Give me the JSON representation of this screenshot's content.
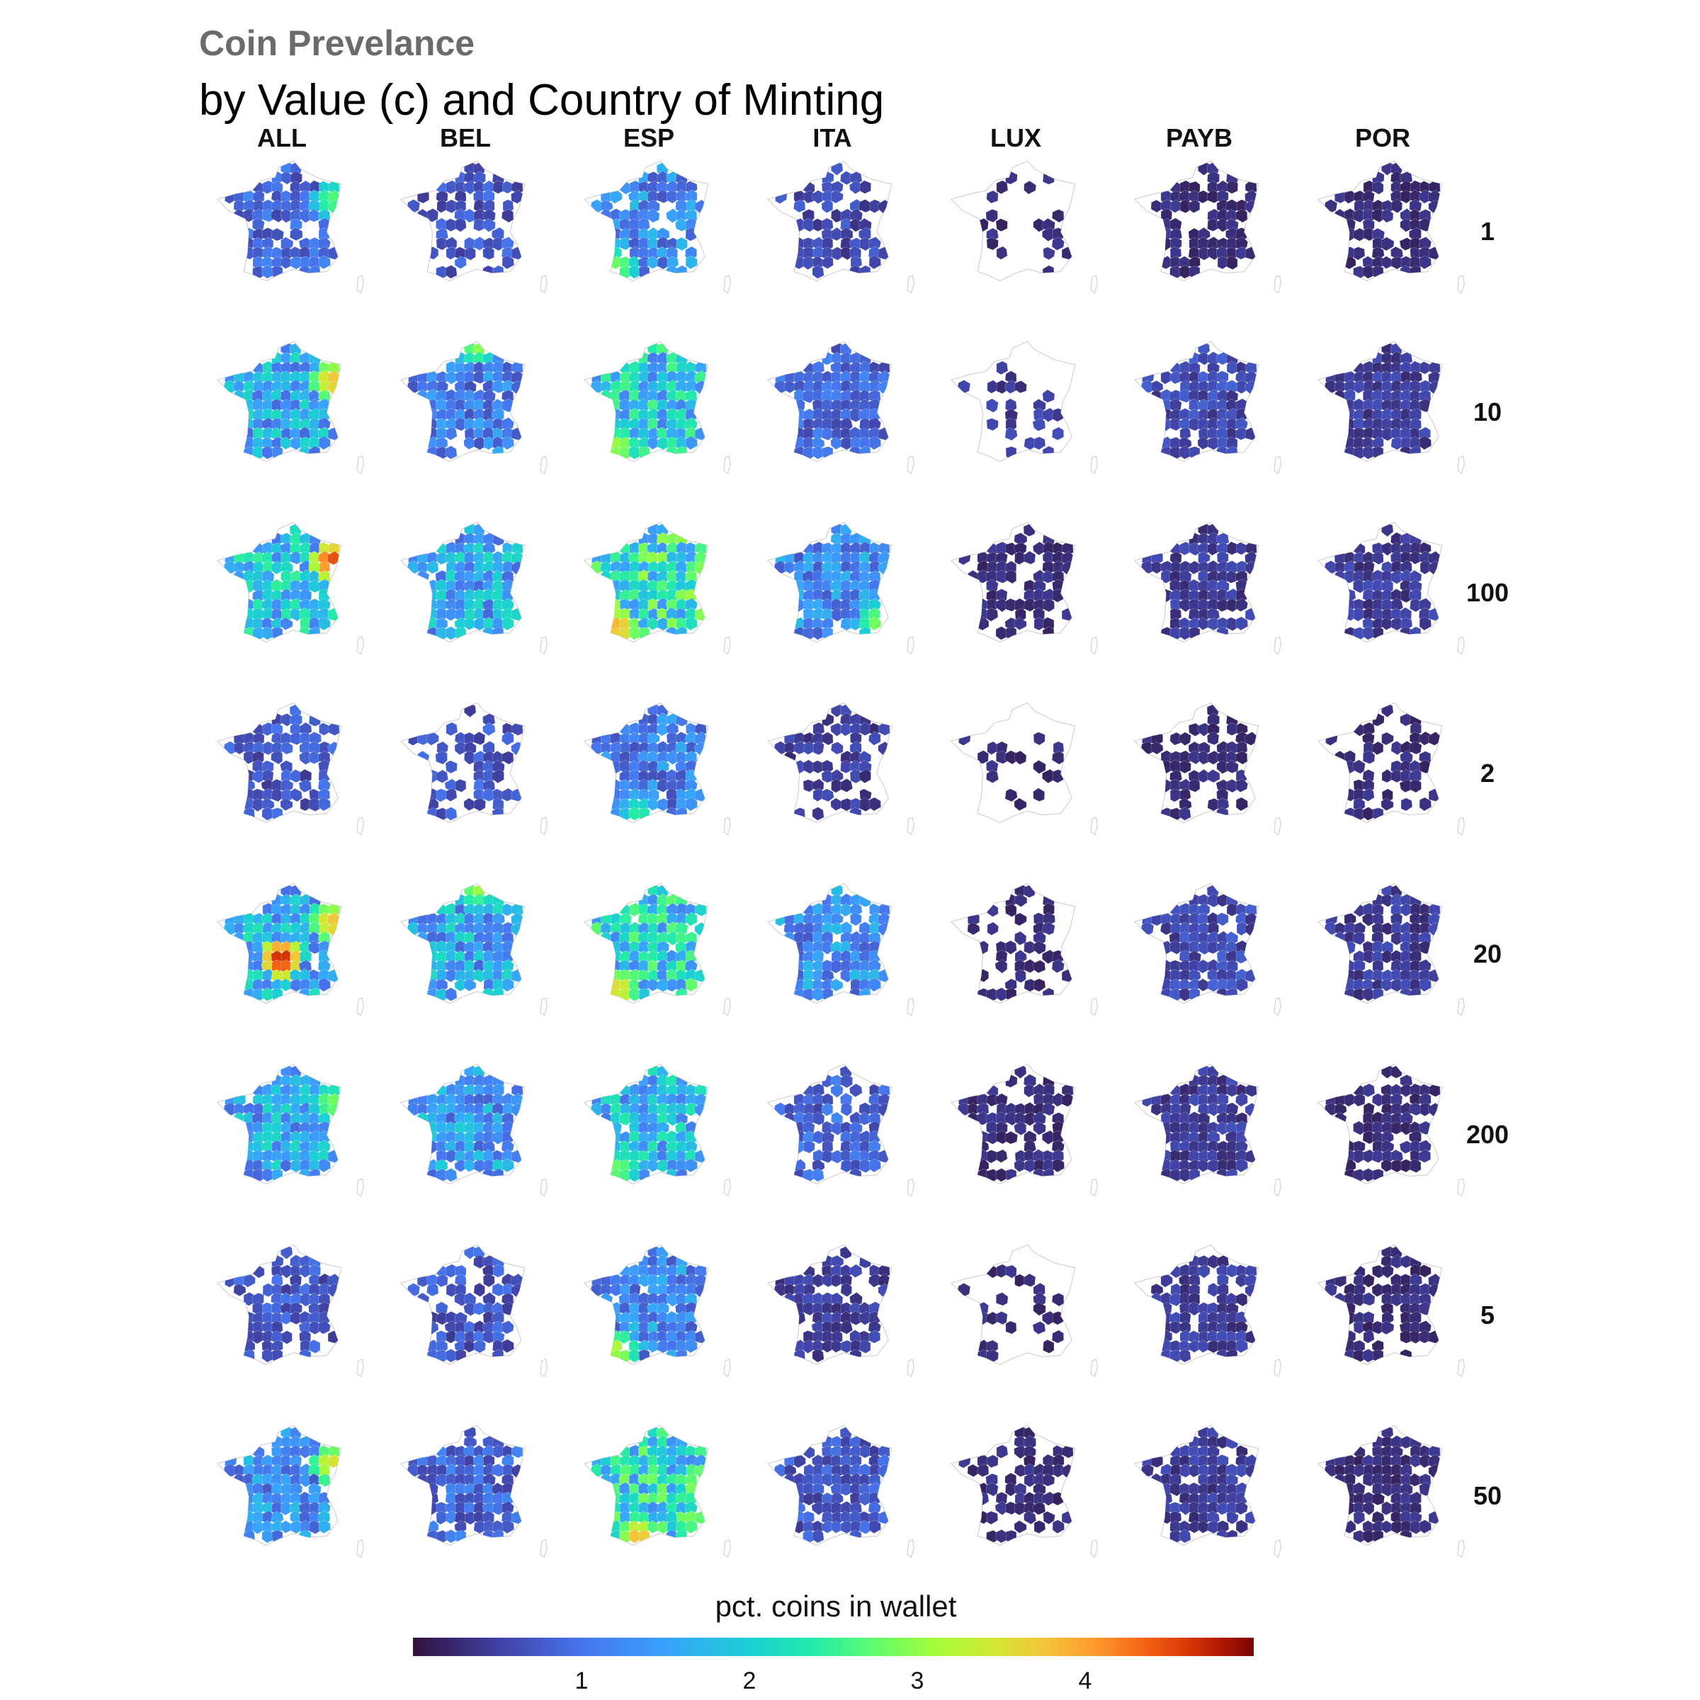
{
  "title": "Coin Prevelance",
  "subtitle": "by Value (c) and Country of Minting",
  "chart_data": {
    "type": "heatmap",
    "title": "Coin Prevelance",
    "subtitle": "by Value (c) and Country of Minting",
    "columns": [
      "ALL",
      "BEL",
      "ESP",
      "ITA",
      "LUX",
      "PAYB",
      "POR"
    ],
    "rows": [
      "1",
      "10",
      "100",
      "2",
      "20",
      "200",
      "5",
      "50"
    ],
    "legend": {
      "title": "pct. coins in wallet",
      "ticks": [
        "1",
        "2",
        "3",
        "4"
      ],
      "range": [
        0,
        5
      ],
      "placement": "bottom",
      "colormap": [
        "#30123b",
        "#4145ab",
        "#4675ed",
        "#39a2fc",
        "#1bcfd4",
        "#24eca6",
        "#61fc6c",
        "#a4fc3b",
        "#d1e834",
        "#f3c63a",
        "#fe9b2d",
        "#f36315",
        "#d93806",
        "#b11901",
        "#7a0403"
      ]
    },
    "panel_levels": [
      [
        0.6,
        0.5,
        0.9,
        0.4,
        0.2,
        0.2,
        0.2
      ],
      [
        1.1,
        0.8,
        1.4,
        0.6,
        0.3,
        0.4,
        0.3
      ],
      [
        1.3,
        1.1,
        1.7,
        0.9,
        0.2,
        0.3,
        0.3
      ],
      [
        0.5,
        0.5,
        0.8,
        0.3,
        0.2,
        0.2,
        0.2
      ],
      [
        1.2,
        1.1,
        1.5,
        0.9,
        0.2,
        0.4,
        0.3
      ],
      [
        1.1,
        1.0,
        1.2,
        0.6,
        0.2,
        0.3,
        0.2
      ],
      [
        0.5,
        0.5,
        0.9,
        0.3,
        0.2,
        0.3,
        0.2
      ],
      [
        0.9,
        0.6,
        1.6,
        0.5,
        0.2,
        0.3,
        0.2
      ]
    ],
    "panel_missing": [
      [
        0.15,
        0.35,
        0.15,
        0.35,
        0.8,
        0.35,
        0.3
      ],
      [
        0.0,
        0.1,
        0.0,
        0.1,
        0.75,
        0.15,
        0.1
      ],
      [
        0.05,
        0.05,
        0.0,
        0.05,
        0.4,
        0.2,
        0.15
      ],
      [
        0.3,
        0.35,
        0.05,
        0.4,
        0.85,
        0.45,
        0.45
      ],
      [
        0.05,
        0.05,
        0.05,
        0.1,
        0.5,
        0.15,
        0.2
      ],
      [
        0.05,
        0.05,
        0.05,
        0.2,
        0.45,
        0.1,
        0.35
      ],
      [
        0.2,
        0.3,
        0.05,
        0.3,
        0.8,
        0.3,
        0.35
      ],
      [
        0.1,
        0.1,
        0.0,
        0.15,
        0.45,
        0.2,
        0.2
      ]
    ],
    "hotspots": [
      {
        "row": "1",
        "col": "ALL",
        "region": "east",
        "value": 2.3
      },
      {
        "row": "1",
        "col": "ESP",
        "region": "southwest",
        "value": 2.5
      },
      {
        "row": "10",
        "col": "ALL",
        "region": "east",
        "value": 3.6
      },
      {
        "row": "10",
        "col": "BEL",
        "region": "north",
        "value": 2.5
      },
      {
        "row": "10",
        "col": "ESP",
        "region": "southwest",
        "value": 2.8
      },
      {
        "row": "100",
        "col": "ALL",
        "region": "east",
        "value": 4.6
      },
      {
        "row": "100",
        "col": "ESP",
        "region": "southwest",
        "value": 3.8
      },
      {
        "row": "100",
        "col": "ITA",
        "region": "southeast",
        "value": 2.4
      },
      {
        "row": "2",
        "col": "ESP",
        "region": "south",
        "value": 2.0
      },
      {
        "row": "20",
        "col": "ALL",
        "region": "center",
        "value": 5.0
      },
      {
        "row": "20",
        "col": "ALL",
        "region": "east",
        "value": 3.6
      },
      {
        "row": "20",
        "col": "BEL",
        "region": "north",
        "value": 2.6
      },
      {
        "row": "20",
        "col": "ESP",
        "region": "southwest",
        "value": 3.4
      },
      {
        "row": "200",
        "col": "ALL",
        "region": "east",
        "value": 2.5
      },
      {
        "row": "200",
        "col": "ESP",
        "region": "southwest",
        "value": 2.5
      },
      {
        "row": "5",
        "col": "ESP",
        "region": "southwest",
        "value": 2.9
      },
      {
        "row": "50",
        "col": "ALL",
        "region": "east",
        "value": 3.3
      },
      {
        "row": "50",
        "col": "ESP",
        "region": "south",
        "value": 3.6
      }
    ]
  }
}
